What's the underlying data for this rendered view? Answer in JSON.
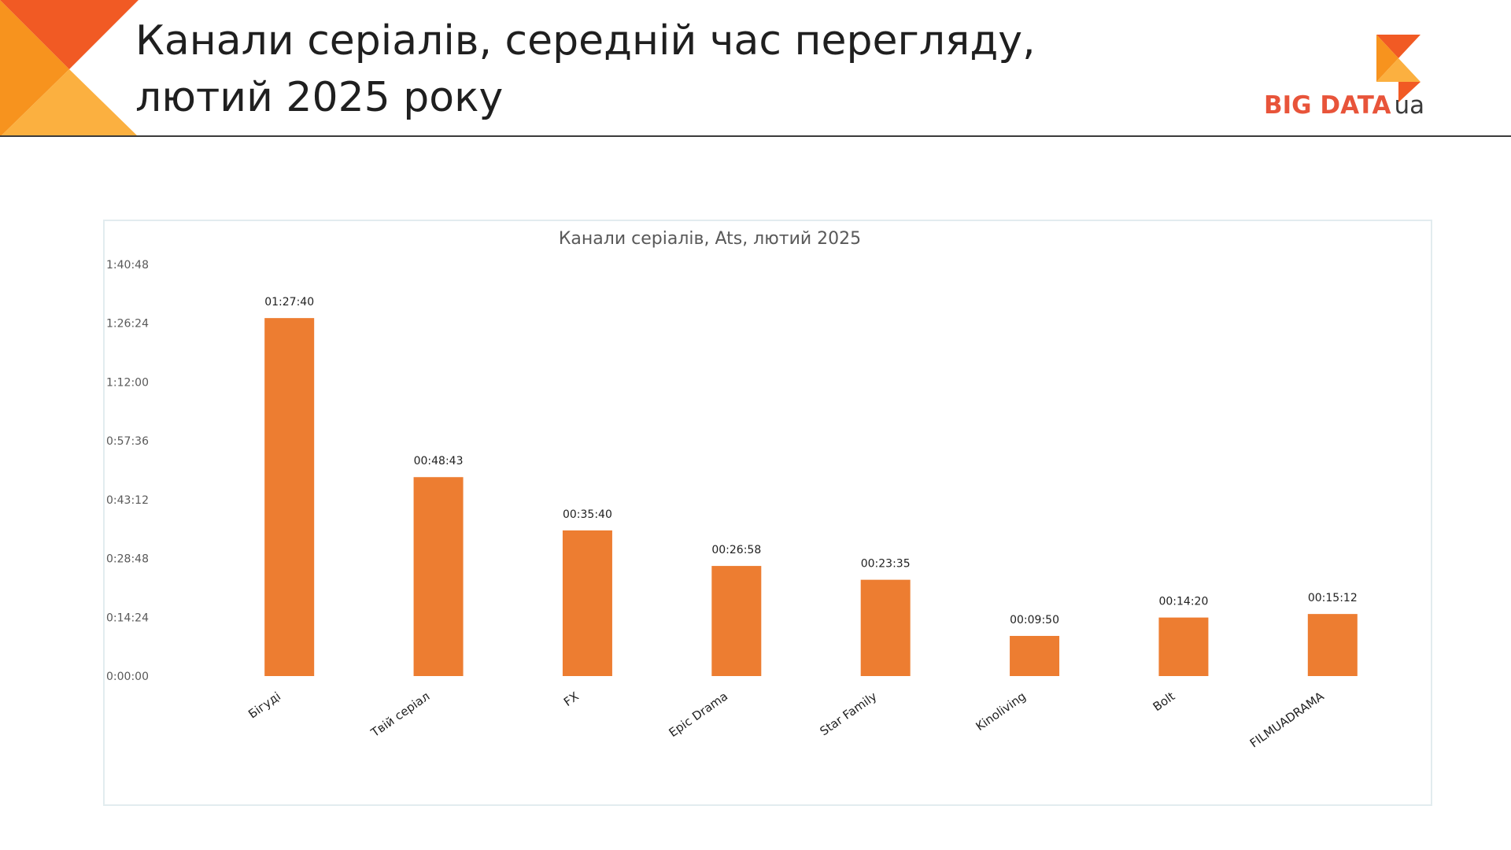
{
  "page": {
    "title_lines": [
      "Канали серіалів, середній час перегляду,",
      "лютий 2025 року"
    ]
  },
  "logo": {
    "brand": "BIG DATA",
    "tld": "ua"
  },
  "colors": {
    "bar": "#ed7d31",
    "corner_dark": "#f15a24",
    "corner_mid": "#f7931e",
    "corner_light": "#fbb040",
    "rule": "#3b3b3b",
    "axis_text": "#595959",
    "label_text": "#1f1f1f"
  },
  "chart_data": {
    "type": "bar",
    "title": "Канали серіалів, Ats, лютий 2025",
    "categories": [
      "Бігуді",
      "Твій серіал",
      "FX",
      "Epic Drama",
      "Star Family",
      "Kinoliving",
      "Bolt",
      "FILMUADRAMA"
    ],
    "series": [
      {
        "values": [
          5260,
          2923,
          2140,
          1618,
          1415,
          590,
          860,
          912
        ],
        "value_unit": "seconds",
        "data_labels": [
          "01:27:40",
          "00:48:43",
          "00:35:40",
          "00:26:58",
          "00:23:35",
          "00:09:50",
          "00:14:20",
          "00:15:12"
        ]
      }
    ],
    "ylim": [
      0,
      6048
    ],
    "yticks": [
      0,
      864,
      1728,
      2592,
      3456,
      4320,
      5184,
      6048
    ],
    "ytick_labels": [
      "0:00:00",
      "0:14:24",
      "0:28:48",
      "0:43:12",
      "0:57:36",
      "1:12:00",
      "1:26:24",
      "1:40:48"
    ],
    "xlabel": "",
    "ylabel": "",
    "grid": false,
    "legend": "none"
  }
}
